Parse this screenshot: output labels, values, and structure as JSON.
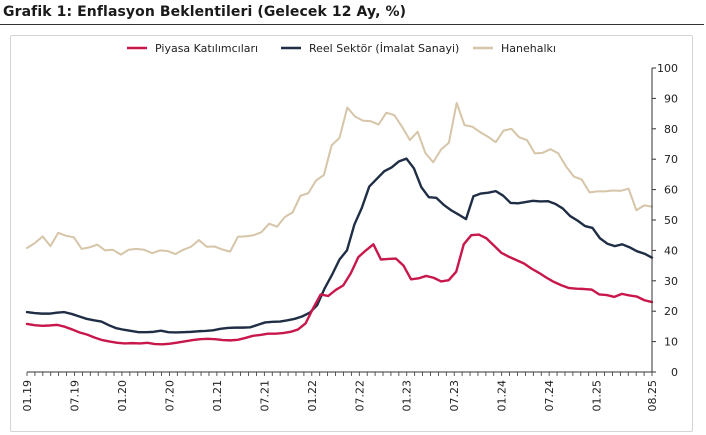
{
  "title": "Grafik 1: Enflasyon Beklentileri (Gelecek 12 Ay, %)",
  "colors": {
    "piyasa": "#c8174a",
    "reel": "#1f2e45",
    "hanehalki": "#d6c5a8",
    "axis": "#333333",
    "frame": "#d4d4d4"
  },
  "chart_data": {
    "type": "line",
    "title": "Grafik 1: Enflasyon Beklentileri (Gelecek 12 Ay, %)",
    "xlabel": "",
    "ylabel": "",
    "ylim": [
      0,
      100
    ],
    "yticks": [
      0,
      10,
      20,
      30,
      40,
      50,
      60,
      70,
      80,
      90,
      100
    ],
    "y_axis_side": "right",
    "grid": false,
    "legend": "top",
    "x_start": "2019-01",
    "x_end": "2025-08",
    "x_tick_labels": [
      "01.19",
      "07.19",
      "01.20",
      "07.20",
      "01.21",
      "07.21",
      "01.22",
      "07.22",
      "01.23",
      "07.23",
      "01.24",
      "07.24",
      "01.25",
      "08.25"
    ],
    "x_tick_months": [
      "2019-01",
      "2019-07",
      "2020-01",
      "2020-07",
      "2021-01",
      "2021-07",
      "2022-01",
      "2022-07",
      "2023-01",
      "2023-07",
      "2024-01",
      "2024-07",
      "2025-01",
      "2025-08"
    ],
    "series": [
      {
        "name": "Piyasa Katılımcıları",
        "color": "#c8174a",
        "values": [
          15.8,
          15.4,
          15.2,
          15.3,
          15.5,
          14.9,
          14.0,
          13.0,
          12.3,
          11.3,
          10.5,
          10.0,
          9.6,
          9.4,
          9.5,
          9.4,
          9.6,
          9.2,
          9.1,
          9.3,
          9.7,
          10.1,
          10.5,
          10.8,
          10.9,
          10.8,
          10.5,
          10.4,
          10.6,
          11.2,
          11.9,
          12.2,
          12.6,
          12.6,
          12.8,
          13.2,
          14.0,
          16.0,
          21.0,
          25.5,
          25.0,
          27.0,
          28.5,
          32.5,
          37.8,
          40.0,
          42.0,
          37.0,
          37.2,
          37.3,
          35.0,
          30.5,
          30.8,
          31.6,
          31.0,
          29.8,
          30.2,
          33.0,
          42.0,
          45.0,
          45.2,
          44.0,
          41.6,
          39.2,
          37.9,
          36.8,
          35.7,
          34.0,
          32.6,
          31.0,
          29.6,
          28.5,
          27.6,
          27.4,
          27.3,
          27.1,
          25.5,
          25.3,
          24.7,
          25.7,
          25.2,
          24.8,
          23.6,
          23.0
        ]
      },
      {
        "name": "Reel Sektör (İmalat Sanayi)",
        "color": "#1f2e45",
        "values": [
          19.7,
          19.4,
          19.2,
          19.2,
          19.5,
          19.7,
          19.1,
          18.3,
          17.5,
          17.0,
          16.6,
          15.4,
          14.4,
          13.9,
          13.5,
          13.1,
          13.1,
          13.2,
          13.6,
          13.1,
          13.0,
          13.1,
          13.2,
          13.4,
          13.5,
          13.7,
          14.2,
          14.5,
          14.6,
          14.6,
          14.7,
          15.5,
          16.3,
          16.5,
          16.6,
          17.0,
          17.5,
          18.3,
          19.5,
          22.0,
          27.5,
          32.0,
          37.0,
          40.0,
          48.5,
          54.0,
          61.0,
          63.5,
          66.0,
          67.3,
          69.3,
          70.2,
          67.0,
          60.8,
          57.5,
          57.3,
          55.0,
          53.2,
          51.8,
          50.3,
          57.8,
          58.7,
          59.0,
          59.5,
          58.0,
          55.6,
          55.5,
          55.9,
          56.3,
          56.1,
          56.2,
          55.3,
          53.8,
          51.3,
          49.8,
          48.0,
          47.4,
          44.0,
          42.2,
          41.4,
          42.0,
          41.0,
          39.7,
          38.9,
          37.6
        ]
      },
      {
        "name": "Hanehalkı",
        "color": "#d6c5a8",
        "values": [
          40.8,
          42.4,
          44.6,
          41.4,
          45.8,
          44.8,
          44.3,
          40.5,
          41.0,
          41.9,
          40.0,
          40.2,
          38.6,
          40.2,
          40.5,
          40.2,
          39.1,
          40.0,
          39.8,
          38.8,
          40.2,
          41.2,
          43.4,
          41.2,
          41.3,
          40.3,
          39.6,
          44.5,
          44.6,
          45.0,
          46.0,
          48.8,
          47.8,
          51.0,
          52.5,
          58.0,
          58.8,
          63.0,
          64.8,
          74.6,
          77.0,
          87.0,
          84.0,
          82.7,
          82.5,
          81.4,
          85.3,
          84.5,
          80.7,
          76.3,
          79.0,
          72.0,
          69.0,
          73.2,
          75.4,
          88.5,
          81.2,
          80.7,
          78.9,
          77.4,
          75.6,
          79.4,
          80.0,
          77.2,
          76.3,
          71.9,
          72.1,
          73.3,
          71.9,
          67.6,
          64.3,
          63.3,
          59.1,
          59.4,
          59.4,
          59.7,
          59.6,
          60.3,
          53.2,
          54.8,
          54.4
        ]
      }
    ]
  }
}
